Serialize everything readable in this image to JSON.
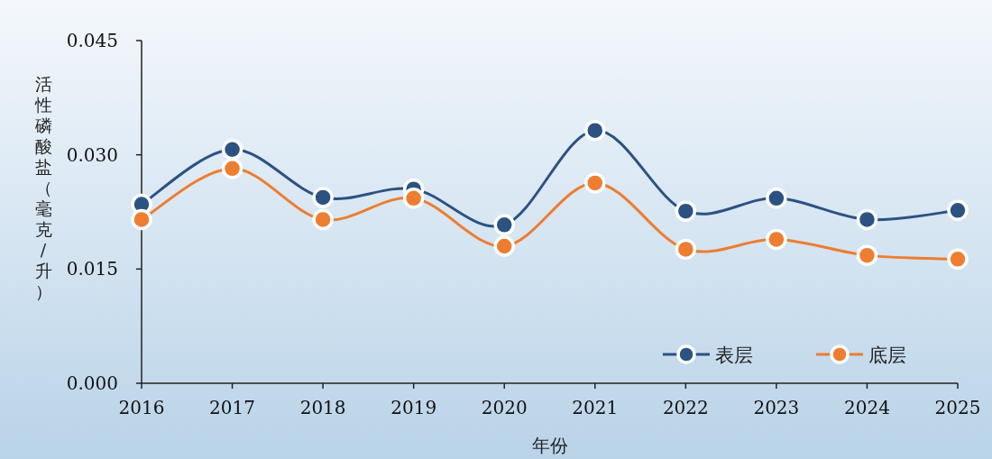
{
  "chart_data": {
    "type": "line",
    "xlabel": "年份",
    "ylabel": "活性磷酸盐（毫克/升）",
    "categories": [
      "2016",
      "2017",
      "2018",
      "2019",
      "2020",
      "2021",
      "2022",
      "2023",
      "2024",
      "2025"
    ],
    "series": [
      {
        "name": "表层",
        "color": "#2c5282",
        "values": [
          0.0235,
          0.0307,
          0.0244,
          0.0255,
          0.0208,
          0.0332,
          0.0226,
          0.0243,
          0.0215,
          0.0227
        ]
      },
      {
        "name": "底层",
        "color": "#ed7d31",
        "values": [
          0.0215,
          0.0282,
          0.0215,
          0.0243,
          0.018,
          0.0263,
          0.0176,
          0.0189,
          0.0168,
          0.0163
        ]
      }
    ],
    "ylim": [
      0,
      0.045
    ],
    "yticks": [
      {
        "value": 0,
        "label": "0.000"
      },
      {
        "value": 0.015,
        "label": "0.015"
      },
      {
        "value": 0.03,
        "label": "0.030"
      },
      {
        "value": 0.045,
        "label": "0.045"
      }
    ],
    "legend": "bottom right",
    "marker": "circle",
    "line_style": "solid"
  }
}
